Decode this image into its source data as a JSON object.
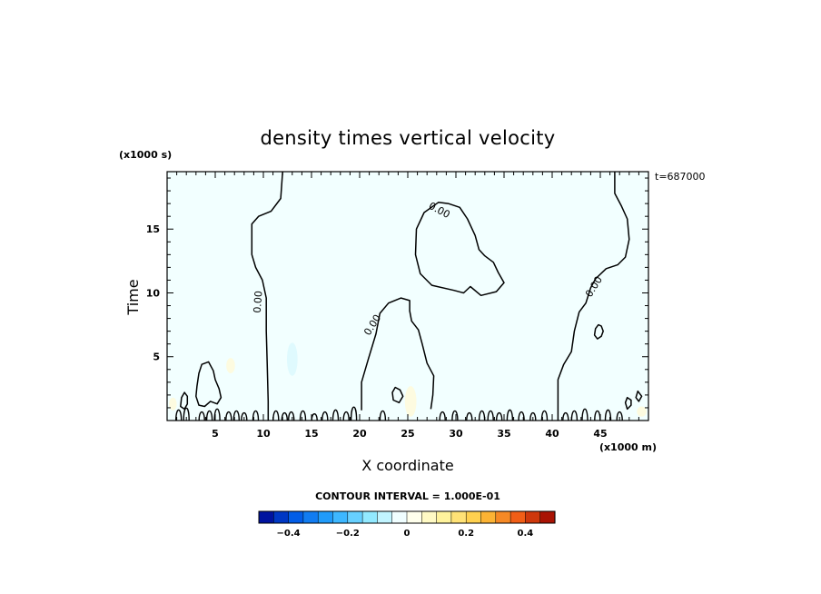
{
  "chart_data": {
    "type": "contour",
    "title": "density times vertical velocity",
    "xlabel": "X coordinate",
    "ylabel": "Time",
    "x_unit": "(x1000 m)",
    "y_unit": "(x1000 s)",
    "time_stamp": "t=687000",
    "xlim": [
      0,
      50
    ],
    "ylim": [
      0,
      19.5
    ],
    "x_ticks": [
      5,
      10,
      15,
      20,
      25,
      30,
      35,
      40,
      45
    ],
    "y_ticks": [
      5,
      10,
      15
    ],
    "contour_interval_label": "CONTOUR INTERVAL = 1.000E-01",
    "contour_line_label": "0.00",
    "colorbar": {
      "range": [
        -0.5,
        0.5
      ],
      "step": 0.05,
      "tick_values": [
        -0.4,
        -0.2,
        0,
        0.2,
        0.4
      ],
      "tick_labels": [
        "−0.4",
        "−0.2",
        "0",
        "0.2",
        "0.4"
      ]
    },
    "fill_color": "#f2ffff",
    "zero_contours": [
      {
        "closed": false,
        "points": [
          [
            12,
            19.5
          ],
          [
            11.8,
            17.4
          ],
          [
            10.8,
            16.4
          ],
          [
            9.5,
            16
          ],
          [
            8.8,
            15.4
          ],
          [
            8.8,
            13
          ],
          [
            9.2,
            12
          ],
          [
            9.9,
            11
          ],
          [
            10.3,
            9.6
          ],
          [
            10.3,
            7
          ],
          [
            10.4,
            4.5
          ],
          [
            10.5,
            1.5
          ],
          [
            10.5,
            0
          ]
        ]
      },
      {
        "closed": false,
        "points": [
          [
            46.5,
            19.5
          ],
          [
            46.5,
            17.8
          ],
          [
            47.2,
            16.8
          ],
          [
            47.8,
            15.8
          ],
          [
            48,
            14.2
          ],
          [
            47.6,
            12.8
          ],
          [
            46.8,
            12.2
          ],
          [
            45.6,
            11.9
          ],
          [
            44.5,
            11.1
          ],
          [
            44,
            10.4
          ],
          [
            43.5,
            9.2
          ],
          [
            42.8,
            8.5
          ],
          [
            42.3,
            7
          ],
          [
            42,
            5.4
          ],
          [
            41.2,
            4.4
          ],
          [
            40.6,
            3.2
          ],
          [
            40.6,
            1.5
          ],
          [
            40.6,
            0
          ]
        ]
      },
      {
        "closed": true,
        "points": [
          [
            28.2,
            17.1
          ],
          [
            26.7,
            16.3
          ],
          [
            25.9,
            15
          ],
          [
            25.8,
            13
          ],
          [
            26.3,
            11.5
          ],
          [
            27.5,
            10.6
          ],
          [
            29.8,
            10.2
          ],
          [
            30.8,
            10
          ],
          [
            31.5,
            10.5
          ],
          [
            32.6,
            9.8
          ],
          [
            34.2,
            10.1
          ],
          [
            35,
            10.8
          ],
          [
            34.4,
            11.6
          ],
          [
            33.9,
            12.4
          ],
          [
            33,
            12.9
          ],
          [
            32.4,
            13.4
          ],
          [
            32,
            14.5
          ],
          [
            31.2,
            15.8
          ],
          [
            30.4,
            16.7
          ],
          [
            29.2,
            17
          ]
        ]
      },
      {
        "closed": false,
        "points": [
          [
            20.2,
            0.8
          ],
          [
            20.2,
            3
          ],
          [
            20.9,
            4.8
          ],
          [
            21.7,
            6.8
          ],
          [
            22.1,
            8.4
          ],
          [
            23,
            9.2
          ],
          [
            24.3,
            9.6
          ],
          [
            25.2,
            9.4
          ],
          [
            25.2,
            8.6
          ],
          [
            25.4,
            7.8
          ],
          [
            26.1,
            7.1
          ],
          [
            26.5,
            6
          ],
          [
            27,
            4.5
          ],
          [
            27.7,
            3.5
          ],
          [
            27.6,
            2
          ],
          [
            27.4,
            0.9
          ]
        ]
      },
      {
        "closed": true,
        "points": [
          [
            4.3,
            4.6
          ],
          [
            3.6,
            4.4
          ],
          [
            3.3,
            3.7
          ],
          [
            3.1,
            2.7
          ],
          [
            3,
            1.9
          ],
          [
            3.3,
            1.2
          ],
          [
            3.9,
            1.1
          ],
          [
            4.5,
            1.5
          ],
          [
            5.2,
            1.3
          ],
          [
            5.6,
            1.8
          ],
          [
            5.4,
            2.5
          ],
          [
            5,
            3.2
          ],
          [
            4.8,
            3.9
          ]
        ]
      },
      {
        "closed": true,
        "points": [
          [
            44.8,
            7.5
          ],
          [
            44.5,
            7.2
          ],
          [
            44.4,
            6.7
          ],
          [
            44.7,
            6.4
          ],
          [
            45.1,
            6.6
          ],
          [
            45.3,
            7
          ],
          [
            45.1,
            7.4
          ]
        ]
      },
      {
        "closed": true,
        "points": [
          [
            1.8,
            2.2
          ],
          [
            1.5,
            1.8
          ],
          [
            1.4,
            1.1
          ],
          [
            1.8,
            0.9
          ],
          [
            2.1,
            1.3
          ],
          [
            2.1,
            1.9
          ]
        ]
      },
      {
        "closed": true,
        "points": [
          [
            23.7,
            2.6
          ],
          [
            23.4,
            2.2
          ],
          [
            23.5,
            1.6
          ],
          [
            24.1,
            1.4
          ],
          [
            24.5,
            1.9
          ],
          [
            24.2,
            2.4
          ]
        ]
      },
      {
        "closed": true,
        "points": [
          [
            47.8,
            1.8
          ],
          [
            47.6,
            1.4
          ],
          [
            47.8,
            0.9
          ],
          [
            48.2,
            1.2
          ],
          [
            48.2,
            1.6
          ]
        ]
      },
      {
        "closed": true,
        "points": [
          [
            48.9,
            2.3
          ],
          [
            48.7,
            1.8
          ],
          [
            49,
            1.5
          ],
          [
            49.3,
            1.9
          ]
        ]
      }
    ],
    "contour_labels": [
      {
        "x": 9.4,
        "y": 9.3,
        "angle": -86
      },
      {
        "x": 21.3,
        "y": 7.5,
        "angle": -58
      },
      {
        "x": 28.3,
        "y": 16.5,
        "angle": 28
      },
      {
        "x": 44.3,
        "y": 10.5,
        "angle": -58
      }
    ],
    "small_cells": [
      {
        "x": 13,
        "y": 4.8,
        "rx": 0.55,
        "ry": 1.3,
        "color": "#dffafe"
      },
      {
        "x": 6.6,
        "y": 4.3,
        "rx": 0.45,
        "ry": 0.6,
        "color": "#fdfbe0"
      },
      {
        "x": 25.3,
        "y": 1.5,
        "rx": 0.6,
        "ry": 1.2,
        "color": "#fdfbe0"
      },
      {
        "x": 0.6,
        "y": 1.3,
        "rx": 0.4,
        "ry": 0.5,
        "color": "#fdfbe0"
      },
      {
        "x": 49.3,
        "y": 0.7,
        "rx": 0.5,
        "ry": 0.4,
        "color": "#fdfbe0"
      }
    ]
  }
}
